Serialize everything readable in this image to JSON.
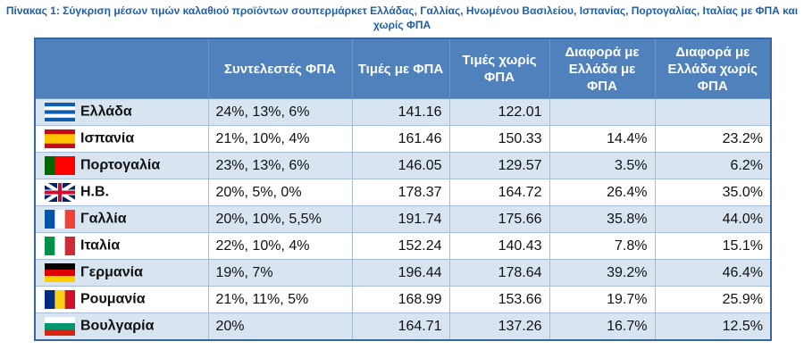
{
  "title": "Πίνακας 1: Σύγκριση μέσων τιμών καλαθιού προϊόντων σουπερμάρκετ Ελλάδας, Γαλλίας, Ηνωμένου Βασιλείου, Ισπανίας, Πορτογαλίας, Ιταλίας με ΦΠΑ και χωρίς ΦΠΑ",
  "table": {
    "headers": [
      "Συντελεστές ΦΠΑ",
      "Τιμές με ΦΠΑ",
      "Τιμές χωρίς ΦΠΑ",
      "Διαφορά με Ελλάδα με ΦΠΑ",
      "Διαφορά με Ελλάδα χωρίς ΦΠΑ"
    ],
    "rows": [
      [
        "Ελλάδα",
        "24%, 13%, 6%",
        "141.16",
        "122.01"
      ],
      [
        "Ισπανία",
        "21%, 10%, 4%",
        "161.46",
        "150.33",
        "14.4%",
        "23.2%"
      ],
      [
        "Πορτογαλία",
        "23%, 13%, 6%",
        "146.05",
        "129.57",
        "3.5%",
        "6.2%"
      ],
      [
        "Η.Β.",
        "20%, 5%, 0%",
        "178.37",
        "164.72",
        "26.4%",
        "35.0%"
      ],
      [
        "Γαλλία",
        "20%, 10%, 5,5%",
        "191.74",
        "175.66",
        "35.8%",
        "44.0%"
      ],
      [
        "Ιταλία",
        "22%, 10%, 4%",
        "152.24",
        "140.43",
        "7.8%",
        "15.1%"
      ],
      [
        "Γερμανία",
        "19%, 7%",
        "196.44",
        "178.64",
        "39.2%",
        "46.4%"
      ],
      [
        "Ρουμανία",
        "21%, 11%, 5%",
        "168.99",
        "153.66",
        "19.7%",
        "25.9%"
      ],
      [
        "Βουλγαρία",
        "20%",
        "164.71",
        "137.26",
        "16.7%",
        "12.5%"
      ]
    ]
  }
}
